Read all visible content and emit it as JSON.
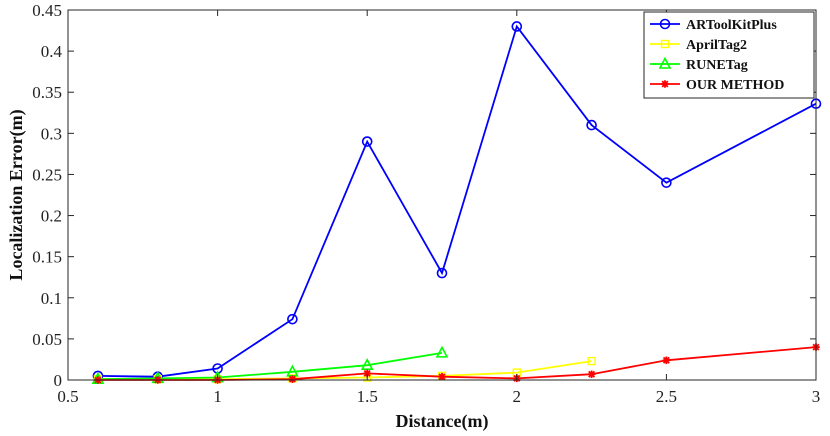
{
  "chart_data": {
    "type": "line",
    "xlabel": "Distance(m)",
    "ylabel": "Localization Error(m)",
    "xlim": [
      0.5,
      3
    ],
    "ylim": [
      0,
      0.45
    ],
    "x_ticks": [
      "0.5",
      "1",
      "1.5",
      "2",
      "2.5",
      "3"
    ],
    "y_ticks": [
      "0",
      "0.05",
      "0.1",
      "0.15",
      "0.2",
      "0.25",
      "0.3",
      "0.35",
      "0.4",
      "0.45"
    ],
    "grid": false,
    "legend_position": "top-right",
    "series": [
      {
        "name": "ARToolKitPlus",
        "color": "#0000ff",
        "marker": "circle",
        "x": [
          0.6,
          0.8,
          1.0,
          1.25,
          1.5,
          1.75,
          2.0,
          2.25,
          2.5,
          3.0
        ],
        "y": [
          0.005,
          0.004,
          0.014,
          0.074,
          0.29,
          0.13,
          0.43,
          0.31,
          0.24,
          0.336
        ]
      },
      {
        "name": "AprilTag2",
        "color": "#ffff00",
        "marker": "square",
        "x": [
          0.6,
          0.8,
          1.0,
          1.25,
          1.5,
          1.75,
          2.0,
          2.25
        ],
        "y": [
          0.001,
          0.001,
          0.001,
          0.002,
          0.003,
          0.005,
          0.009,
          0.023
        ]
      },
      {
        "name": "RUNETag",
        "color": "#00ff00",
        "marker": "triangle",
        "x": [
          0.6,
          0.8,
          1.0,
          1.25,
          1.5,
          1.75
        ],
        "y": [
          0.001,
          0.002,
          0.003,
          0.01,
          0.018,
          0.033
        ]
      },
      {
        "name": "OUR METHOD",
        "color": "#ff0000",
        "marker": "star",
        "x": [
          0.6,
          0.8,
          1.0,
          1.25,
          1.5,
          1.75,
          2.0,
          2.25,
          2.5,
          3.0
        ],
        "y": [
          0.0,
          0.0,
          0.0,
          0.001,
          0.008,
          0.004,
          0.002,
          0.007,
          0.024,
          0.04
        ]
      }
    ]
  }
}
